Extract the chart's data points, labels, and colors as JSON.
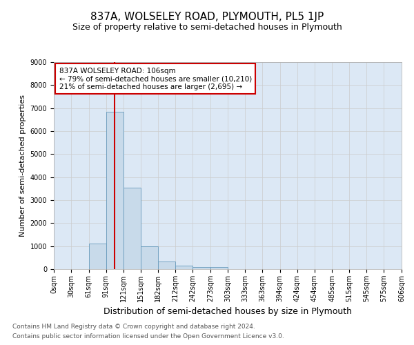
{
  "title": "837A, WOLSELEY ROAD, PLYMOUTH, PL5 1JP",
  "subtitle": "Size of property relative to semi-detached houses in Plymouth",
  "xlabel": "Distribution of semi-detached houses by size in Plymouth",
  "ylabel": "Number of semi-detached properties",
  "bin_edges": [
    0,
    30,
    61,
    91,
    121,
    151,
    182,
    212,
    242,
    273,
    303,
    333,
    363,
    394,
    424,
    454,
    485,
    515,
    545,
    575,
    606
  ],
  "bar_heights": [
    0,
    0,
    1100,
    6850,
    3550,
    1000,
    320,
    140,
    100,
    95,
    0,
    0,
    0,
    0,
    0,
    0,
    0,
    0,
    0,
    0
  ],
  "bar_color": "#c8daea",
  "bar_edge_color": "#6699bb",
  "property_size": 106,
  "ylim": [
    0,
    9000
  ],
  "yticks": [
    0,
    1000,
    2000,
    3000,
    4000,
    5000,
    6000,
    7000,
    8000,
    9000
  ],
  "annotation_title": "837A WOLSELEY ROAD: 106sqm",
  "annotation_line1": "← 79% of semi-detached houses are smaller (10,210)",
  "annotation_line2": "21% of semi-detached houses are larger (2,695) →",
  "annotation_box_color": "#ffffff",
  "annotation_box_edge": "#cc0000",
  "vline_color": "#cc0000",
  "grid_color": "#cccccc",
  "background_color": "#dce8f5",
  "footer1": "Contains HM Land Registry data © Crown copyright and database right 2024.",
  "footer2": "Contains public sector information licensed under the Open Government Licence v3.0.",
  "title_fontsize": 11,
  "subtitle_fontsize": 9,
  "xlabel_fontsize": 9,
  "ylabel_fontsize": 8,
  "tick_fontsize": 7,
  "footer_fontsize": 6.5,
  "annotation_fontsize": 7.5
}
